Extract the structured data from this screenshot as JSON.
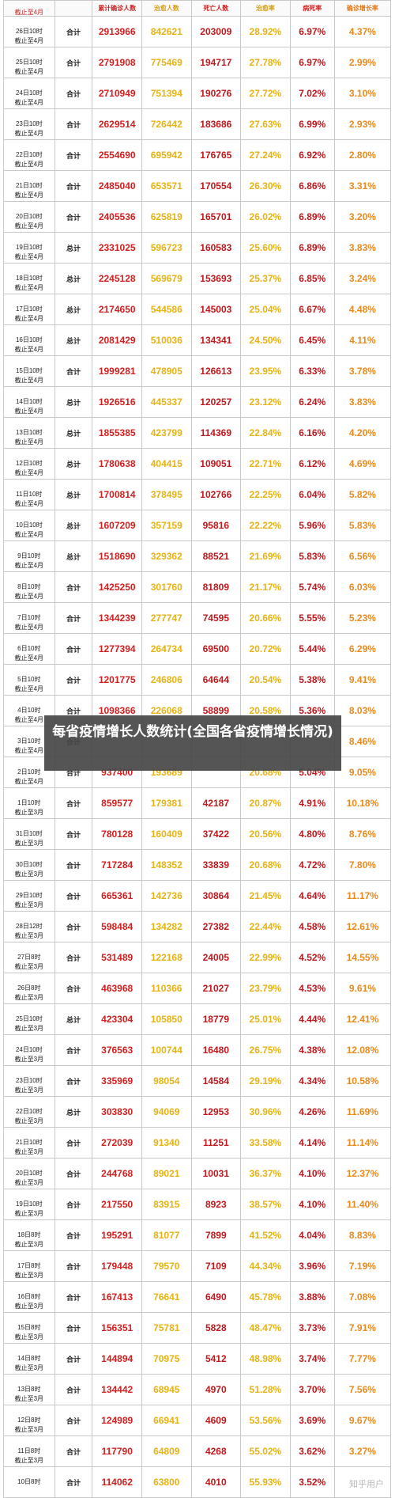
{
  "header": {
    "confirmed": "累计确诊人数",
    "cured": "治愈人数",
    "deaths": "死亡人数",
    "cure_rate": "治愈率",
    "death_rate": "病死率",
    "growth": "确诊增长率"
  },
  "first_row_cutoff": "截止至4月",
  "rows": [
    {
      "date": "26日10时",
      "next_cut": "截止至4月",
      "type": "合计",
      "conf": "2913966",
      "cure": "842621",
      "death": "203009",
      "crate": "28.92%",
      "drate": "6.97%",
      "grow": "4.37%"
    },
    {
      "date": "25日10时",
      "next_cut": "截止至4月",
      "type": "合计",
      "conf": "2791908",
      "cure": "775469",
      "death": "194717",
      "crate": "27.78%",
      "drate": "6.97%",
      "grow": "2.99%"
    },
    {
      "date": "24日10时",
      "next_cut": "截止至4月",
      "type": "合计",
      "conf": "2710949",
      "cure": "751394",
      "death": "190276",
      "crate": "27.72%",
      "drate": "7.02%",
      "grow": "3.10%"
    },
    {
      "date": "23日10时",
      "next_cut": "截止至4月",
      "type": "合计",
      "conf": "2629514",
      "cure": "726442",
      "death": "183686",
      "crate": "27.63%",
      "drate": "6.99%",
      "grow": "2.93%"
    },
    {
      "date": "22日10时",
      "next_cut": "截止至4月",
      "type": "合计",
      "conf": "2554690",
      "cure": "695942",
      "death": "176765",
      "crate": "27.24%",
      "drate": "6.92%",
      "grow": "2.80%"
    },
    {
      "date": "21日10时",
      "next_cut": "截止至4月",
      "type": "合计",
      "conf": "2485040",
      "cure": "653571",
      "death": "170554",
      "crate": "26.30%",
      "drate": "6.86%",
      "grow": "3.31%"
    },
    {
      "date": "20日10时",
      "next_cut": "截止至4月",
      "type": "合计",
      "conf": "2405536",
      "cure": "625819",
      "death": "165701",
      "crate": "26.02%",
      "drate": "6.89%",
      "grow": "3.20%"
    },
    {
      "date": "19日10时",
      "next_cut": "截止至4月",
      "type": "总计",
      "conf": "2331025",
      "cure": "596723",
      "death": "160583",
      "crate": "25.60%",
      "drate": "6.89%",
      "grow": "3.83%"
    },
    {
      "date": "18日10时",
      "next_cut": "截止至4月",
      "type": "总计",
      "conf": "2245128",
      "cure": "569679",
      "death": "153693",
      "crate": "25.37%",
      "drate": "6.85%",
      "grow": "3.24%"
    },
    {
      "date": "17日10时",
      "next_cut": "截止至4月",
      "type": "总计",
      "conf": "2174650",
      "cure": "544586",
      "death": "145003",
      "crate": "25.04%",
      "drate": "6.67%",
      "grow": "4.48%"
    },
    {
      "date": "16日10时",
      "next_cut": "截止至4月",
      "type": "总计",
      "conf": "2081429",
      "cure": "510036",
      "death": "134341",
      "crate": "24.50%",
      "drate": "6.45%",
      "grow": "4.11%"
    },
    {
      "date": "15日10时",
      "next_cut": "截止至4月",
      "type": "合计",
      "conf": "1999281",
      "cure": "478905",
      "death": "126613",
      "crate": "23.95%",
      "drate": "6.33%",
      "grow": "3.78%"
    },
    {
      "date": "14日10时",
      "next_cut": "截止至4月",
      "type": "总计",
      "conf": "1926516",
      "cure": "445337",
      "death": "120257",
      "crate": "23.12%",
      "drate": "6.24%",
      "grow": "3.83%"
    },
    {
      "date": "13日10时",
      "next_cut": "截止至4月",
      "type": "总计",
      "conf": "1855385",
      "cure": "423799",
      "death": "114369",
      "crate": "22.84%",
      "drate": "6.16%",
      "grow": "4.20%"
    },
    {
      "date": "12日10时",
      "next_cut": "截止至4月",
      "type": "总计",
      "conf": "1780638",
      "cure": "404415",
      "death": "109051",
      "crate": "22.71%",
      "drate": "6.12%",
      "grow": "4.69%"
    },
    {
      "date": "11日10时",
      "next_cut": "截止至4月",
      "type": "总计",
      "conf": "1700814",
      "cure": "378495",
      "death": "102766",
      "crate": "22.25%",
      "drate": "6.04%",
      "grow": "5.82%"
    },
    {
      "date": "10日10时",
      "next_cut": "截止至4月",
      "type": "总计",
      "conf": "1607209",
      "cure": "357159",
      "death": "95816",
      "crate": "22.22%",
      "drate": "5.96%",
      "grow": "5.83%"
    },
    {
      "date": "9日10时",
      "next_cut": "截止至4月",
      "type": "总计",
      "conf": "1518690",
      "cure": "329362",
      "death": "88521",
      "crate": "21.69%",
      "drate": "5.83%",
      "grow": "6.56%"
    },
    {
      "date": "8日10时",
      "next_cut": "截止至4月",
      "type": "合计",
      "conf": "1425250",
      "cure": "301760",
      "death": "81809",
      "crate": "21.17%",
      "drate": "5.74%",
      "grow": "6.03%"
    },
    {
      "date": "7日10时",
      "next_cut": "截止至4月",
      "type": "合计",
      "conf": "1344239",
      "cure": "277747",
      "death": "74595",
      "crate": "20.66%",
      "drate": "5.55%",
      "grow": "5.23%"
    },
    {
      "date": "6日10时",
      "next_cut": "截止至4月",
      "type": "合计",
      "conf": "1277394",
      "cure": "264734",
      "death": "69500",
      "crate": "20.72%",
      "drate": "5.44%",
      "grow": "6.29%"
    },
    {
      "date": "5日10时",
      "next_cut": "截止至4月",
      "type": "合计",
      "conf": "1201775",
      "cure": "246806",
      "death": "64644",
      "crate": "20.54%",
      "drate": "5.38%",
      "grow": "9.41%"
    },
    {
      "date": "4日10时",
      "next_cut": "截止至4月",
      "type": "合计",
      "conf": "1098366",
      "cure": "226068",
      "death": "58899",
      "crate": "20.58%",
      "drate": "5.36%",
      "grow": "8.03%"
    },
    {
      "date": "3日10时",
      "next_cut": "截止至4月",
      "type": "合计",
      "conf": "",
      "cure": "",
      "death": "",
      "crate": "",
      "drate": "",
      "grow": "8.46%"
    },
    {
      "date": "2日10时",
      "next_cut": "截止至4月",
      "type": "合计",
      "conf": "937400",
      "cure": "193689",
      "death": "",
      "crate": "20.68%",
      "drate": "5.04%",
      "grow": "9.05%"
    },
    {
      "date": "1日10时",
      "next_cut": "截止至3月",
      "type": "合计",
      "conf": "859577",
      "cure": "179381",
      "death": "42187",
      "crate": "20.87%",
      "drate": "4.91%",
      "grow": "10.18%"
    },
    {
      "date": "31日10时",
      "next_cut": "截止至3月",
      "type": "合计",
      "conf": "780128",
      "cure": "160409",
      "death": "37422",
      "crate": "20.56%",
      "drate": "4.80%",
      "grow": "8.76%"
    },
    {
      "date": "30日10时",
      "next_cut": "截止至3月",
      "type": "合计",
      "conf": "717284",
      "cure": "148352",
      "death": "33839",
      "crate": "20.68%",
      "drate": "4.72%",
      "grow": "7.80%"
    },
    {
      "date": "29日10时",
      "next_cut": "截止至3月",
      "type": "合计",
      "conf": "665361",
      "cure": "142736",
      "death": "30864",
      "crate": "21.45%",
      "drate": "4.64%",
      "grow": "11.17%"
    },
    {
      "date": "28日12时",
      "next_cut": "截止至3月",
      "type": "合计",
      "conf": "598484",
      "cure": "134282",
      "death": "27382",
      "crate": "22.44%",
      "drate": "4.58%",
      "grow": "12.61%"
    },
    {
      "date": "27日8时",
      "next_cut": "截止至3月",
      "type": "合计",
      "conf": "531489",
      "cure": "122168",
      "death": "24005",
      "crate": "22.99%",
      "drate": "4.52%",
      "grow": "14.55%"
    },
    {
      "date": "26日8时",
      "next_cut": "截止至3月",
      "type": "合计",
      "conf": "463968",
      "cure": "110366",
      "death": "21027",
      "crate": "23.79%",
      "drate": "4.53%",
      "grow": "9.61%"
    },
    {
      "date": "25日10时",
      "next_cut": "截止至3月",
      "type": "总计",
      "conf": "423304",
      "cure": "105850",
      "death": "18779",
      "crate": "25.01%",
      "drate": "4.44%",
      "grow": "12.41%"
    },
    {
      "date": "24日10时",
      "next_cut": "截止至3月",
      "type": "合计",
      "conf": "376563",
      "cure": "100744",
      "death": "16480",
      "crate": "26.75%",
      "drate": "4.38%",
      "grow": "12.08%"
    },
    {
      "date": "23日10时",
      "next_cut": "截止至3月",
      "type": "合计",
      "conf": "335969",
      "cure": "98054",
      "death": "14584",
      "crate": "29.19%",
      "drate": "4.34%",
      "grow": "10.58%"
    },
    {
      "date": "22日10时",
      "next_cut": "截止至3月",
      "type": "总计",
      "conf": "303830",
      "cure": "94069",
      "death": "12953",
      "crate": "30.96%",
      "drate": "4.26%",
      "grow": "11.69%"
    },
    {
      "date": "21日10时",
      "next_cut": "截止至3月",
      "type": "合计",
      "conf": "272039",
      "cure": "91340",
      "death": "11251",
      "crate": "33.58%",
      "drate": "4.14%",
      "grow": "11.14%"
    },
    {
      "date": "20日10时",
      "next_cut": "截止至3月",
      "type": "合计",
      "conf": "244768",
      "cure": "89021",
      "death": "10031",
      "crate": "36.37%",
      "drate": "4.10%",
      "grow": "12.37%"
    },
    {
      "date": "19日10时",
      "next_cut": "截止至3月",
      "type": "合计",
      "conf": "217550",
      "cure": "83915",
      "death": "8923",
      "crate": "38.57%",
      "drate": "4.10%",
      "grow": "11.40%"
    },
    {
      "date": "18日8时",
      "next_cut": "截止至3月",
      "type": "合计",
      "conf": "195291",
      "cure": "81077",
      "death": "7899",
      "crate": "41.52%",
      "drate": "4.04%",
      "grow": "8.83%"
    },
    {
      "date": "17日8时",
      "next_cut": "截止至3月",
      "type": "合计",
      "conf": "179448",
      "cure": "79570",
      "death": "7109",
      "crate": "44.34%",
      "drate": "3.96%",
      "grow": "7.19%"
    },
    {
      "date": "16日8时",
      "next_cut": "截止至3月",
      "type": "合计",
      "conf": "167413",
      "cure": "76641",
      "death": "6490",
      "crate": "45.78%",
      "drate": "3.88%",
      "grow": "7.08%"
    },
    {
      "date": "15日8时",
      "next_cut": "截止至3月",
      "type": "合计",
      "conf": "156351",
      "cure": "75781",
      "death": "5828",
      "crate": "48.47%",
      "drate": "3.73%",
      "grow": "7.91%"
    },
    {
      "date": "14日8时",
      "next_cut": "截止至3月",
      "type": "合计",
      "conf": "144894",
      "cure": "70975",
      "death": "5412",
      "crate": "48.98%",
      "drate": "3.74%",
      "grow": "7.77%"
    },
    {
      "date": "13日8时",
      "next_cut": "截止至3月",
      "type": "合计",
      "conf": "134442",
      "cure": "68945",
      "death": "4970",
      "crate": "51.28%",
      "drate": "3.70%",
      "grow": "7.56%"
    },
    {
      "date": "12日8时",
      "next_cut": "截止至3月",
      "type": "合计",
      "conf": "124989",
      "cure": "66941",
      "death": "4609",
      "crate": "53.56%",
      "drate": "3.69%",
      "grow": "9.67%"
    },
    {
      "date": "11日8时",
      "next_cut": "截止至3月",
      "type": "合计",
      "conf": "117790",
      "cure": "64809",
      "death": "4268",
      "crate": "55.02%",
      "drate": "3.62%",
      "grow": "3.27%"
    },
    {
      "date": "10日8时",
      "next_cut": "",
      "type": "合计",
      "conf": "114062",
      "cure": "63800",
      "death": "4010",
      "crate": "55.93%",
      "drate": "3.52%",
      "grow": ""
    }
  ],
  "caption": "每省疫情增长人数统计(全国各省疫情增长情况)",
  "watermark": "知乎用户"
}
